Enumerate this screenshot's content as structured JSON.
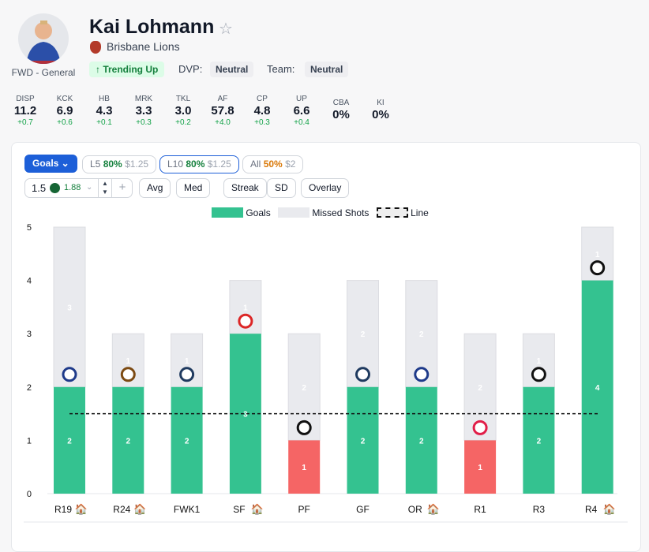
{
  "player": {
    "name": "Kai Lohmann",
    "team": "Brisbane Lions",
    "position": "FWD - General",
    "trend": "↑ Trending Up",
    "dvp_label": "DVP:",
    "dvp": "Neutral",
    "team_label": "Team:",
    "team_value": "Neutral"
  },
  "stats": [
    {
      "k": "DISP",
      "v": "11.2",
      "d": "+0.7"
    },
    {
      "k": "KCK",
      "v": "6.9",
      "d": "+0.6"
    },
    {
      "k": "HB",
      "v": "4.3",
      "d": "+0.1"
    },
    {
      "k": "MRK",
      "v": "3.3",
      "d": "+0.3"
    },
    {
      "k": "TKL",
      "v": "3.0",
      "d": "+0.2"
    },
    {
      "k": "AF",
      "v": "57.8",
      "d": "+4.0"
    },
    {
      "k": "CP",
      "v": "4.8",
      "d": "+0.3"
    },
    {
      "k": "UP",
      "v": "6.6",
      "d": "+0.4"
    },
    {
      "k": "CBA",
      "v": "0%",
      "d": ""
    },
    {
      "k": "KI",
      "v": "0%",
      "d": ""
    }
  ],
  "controls": {
    "stat_select": "Goals ⌄",
    "l5": {
      "label": "L5",
      "pct": "80%",
      "odds": "$1.25"
    },
    "l10": {
      "label": "L10",
      "pct": "80%",
      "odds": "$1.25"
    },
    "all": {
      "label": "All",
      "pct": "50%",
      "odds": "$2"
    },
    "line_value": "1.5",
    "line_odds": "1.88",
    "buttons": [
      "Avg",
      "Med",
      "Streak",
      "SD",
      "Overlay"
    ]
  },
  "legend": {
    "goals": "Goals",
    "missed": "Missed Shots",
    "line": "Line"
  },
  "colors": {
    "hit": "#34c290",
    "miss": "#f56565",
    "missed_shots": "#e9eaee",
    "accent": "#1d5fd8"
  },
  "chart_data": {
    "type": "bar",
    "stacked": true,
    "ylim": [
      0,
      5
    ],
    "yticks": [
      0,
      1,
      2,
      3,
      4,
      5
    ],
    "line": 1.5,
    "categories": [
      "R19",
      "R24",
      "FWK1",
      "SF",
      "PF",
      "GF",
      "OR",
      "R1",
      "R3",
      "R4"
    ],
    "home": [
      true,
      true,
      false,
      true,
      false,
      false,
      true,
      false,
      false,
      true
    ],
    "opponents": [
      "bulldogs",
      "hawks",
      "cats",
      "suns",
      "magpies",
      "cats",
      "bulldogs",
      "swans",
      "saints",
      "magpies"
    ],
    "series": [
      {
        "name": "Goals",
        "values": [
          2,
          2,
          2,
          3,
          1,
          2,
          2,
          1,
          2,
          4
        ]
      },
      {
        "name": "Missed Shots",
        "values": [
          3,
          1,
          1,
          1,
          2,
          2,
          2,
          2,
          1,
          1
        ]
      }
    ]
  }
}
